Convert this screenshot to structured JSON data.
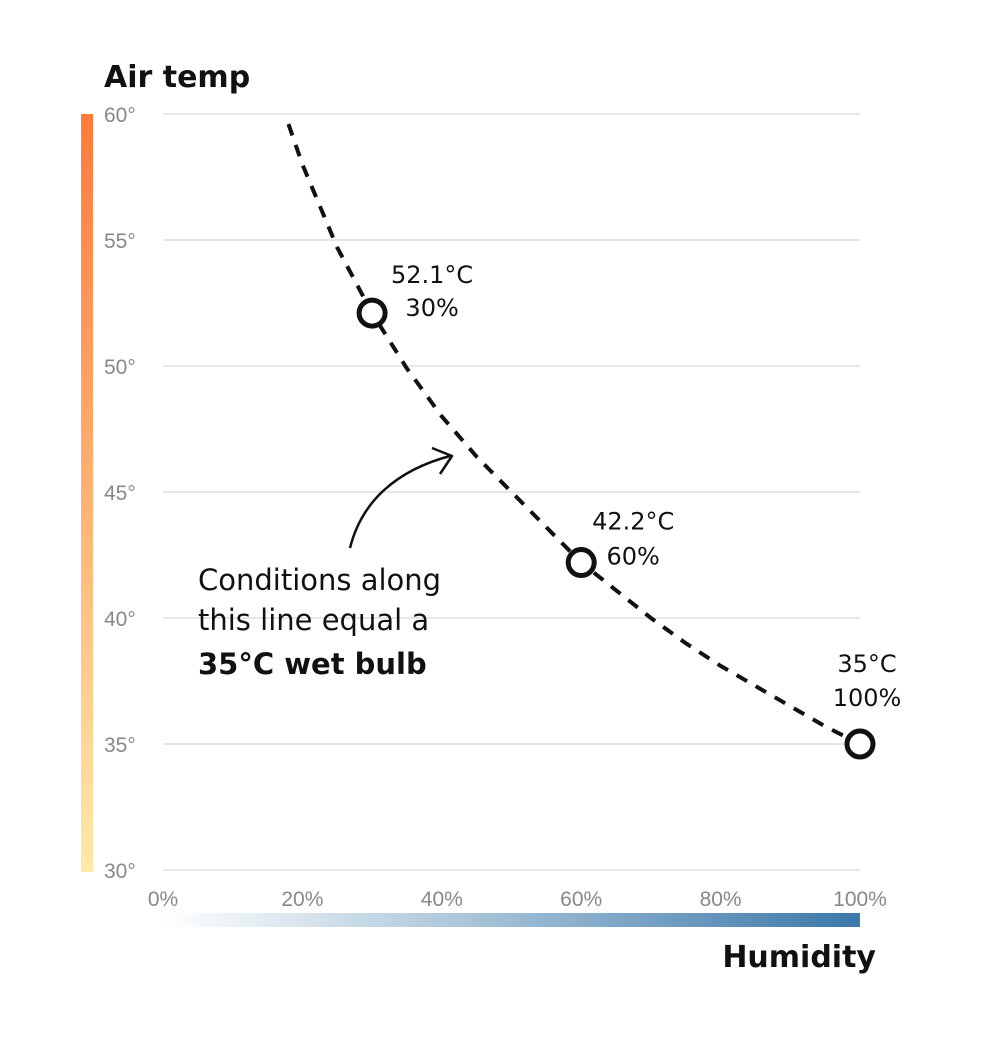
{
  "chart_data": {
    "type": "line",
    "ylabel": "Air temp",
    "xlabel": "Humidity",
    "y_ticks": [
      "30°",
      "35°",
      "40°",
      "45°",
      "50°",
      "55°",
      "60°"
    ],
    "x_ticks": [
      "0%",
      "20%",
      "40%",
      "60%",
      "80%",
      "100%"
    ],
    "xlim": [
      0,
      100
    ],
    "ylim": [
      30,
      60
    ],
    "grid": true,
    "colors": {
      "y_gradient_top": "#ff7a3c",
      "y_gradient_bottom": "#ffe9a8",
      "x_gradient_left": "#ffffff",
      "x_gradient_right": "#3b78a8",
      "line": "#111111",
      "grid": "#e6e6e6"
    },
    "series": [
      {
        "style": "dashed",
        "x": [
          18,
          20,
          25,
          30,
          35,
          40,
          45,
          50,
          55,
          60,
          65,
          70,
          75,
          80,
          85,
          90,
          95,
          100
        ],
        "y": [
          59.6,
          58.0,
          54.7,
          52.1,
          49.9,
          48.0,
          46.4,
          45.0,
          43.6,
          42.2,
          41.1,
          40.0,
          39.0,
          38.1,
          37.3,
          36.5,
          35.7,
          35.0
        ]
      }
    ],
    "points": [
      {
        "x": 30,
        "y": 52.1,
        "label_temp": "52.1°C",
        "label_hum": "30%"
      },
      {
        "x": 60,
        "y": 42.2,
        "label_temp": "42.2°C",
        "label_hum": "60%"
      },
      {
        "x": 100,
        "y": 35.0,
        "label_temp": "35°C",
        "label_hum": "100%"
      }
    ],
    "annotation": {
      "line1": "Conditions along",
      "line2": "this line equal a",
      "line3": "35°C wet bulb"
    }
  }
}
